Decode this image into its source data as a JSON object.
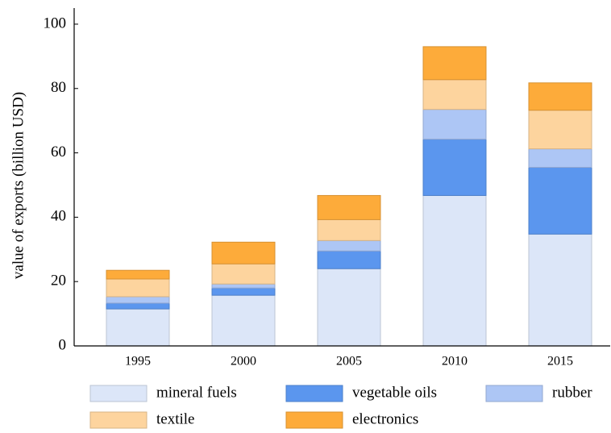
{
  "chart_data": {
    "type": "stacked-bar",
    "y_label": "value of exports (billion USD)",
    "categories": [
      "1995",
      "2000",
      "2005",
      "2010",
      "2015"
    ],
    "series": [
      {
        "name": "mineral fuels",
        "color": "#dce6f8",
        "values": [
          11.5,
          15.75,
          24,
          46.75,
          34.75
        ]
      },
      {
        "name": "vegetable oils",
        "color": "#5b96ee",
        "values": [
          1.8,
          2.25,
          5.5,
          17.5,
          20.75
        ]
      },
      {
        "name": "rubber",
        "color": "#adc6f5",
        "values": [
          2,
          1.25,
          3.25,
          9.25,
          5.75
        ]
      },
      {
        "name": "textile",
        "color": "#fdd49e",
        "values": [
          5.5,
          6.25,
          6.5,
          9.25,
          12
        ]
      },
      {
        "name": "electronics",
        "color": "#fdab3a",
        "values": [
          2.7,
          6.75,
          7.5,
          10.25,
          8.5
        ]
      }
    ],
    "ylim": [
      0,
      105
    ],
    "yticks": [
      0,
      20,
      40,
      60,
      80,
      100
    ]
  }
}
